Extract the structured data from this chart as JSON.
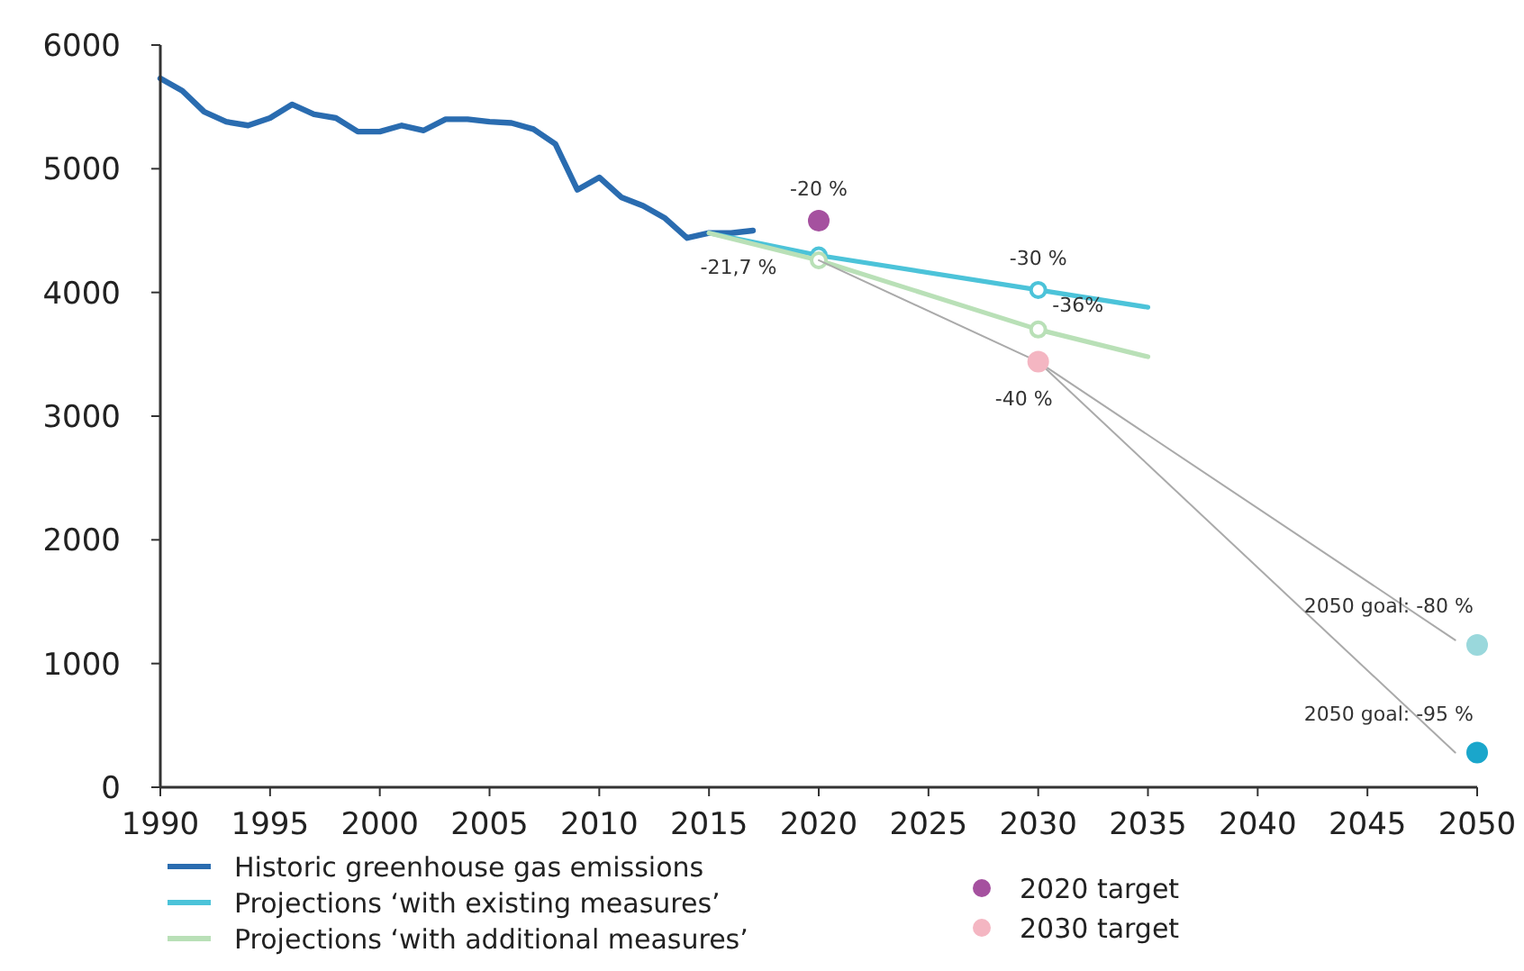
{
  "chart_data": {
    "type": "line",
    "xlim": [
      1990,
      2050
    ],
    "ylim": [
      0,
      6000
    ],
    "xticks": [
      1990,
      1995,
      2000,
      2005,
      2010,
      2015,
      2020,
      2025,
      2030,
      2035,
      2040,
      2045,
      2050
    ],
    "yticks": [
      0,
      1000,
      2000,
      3000,
      4000,
      5000,
      6000
    ],
    "grid": false,
    "legend": "bottom",
    "marker": "none",
    "line_style": "solid",
    "series": [
      {
        "name": "Historic greenhouse gas emissions",
        "color": "#2a6cb0",
        "x": [
          1990,
          1991,
          1992,
          1993,
          1994,
          1995,
          1996,
          1997,
          1998,
          1999,
          2000,
          2001,
          2002,
          2003,
          2004,
          2005,
          2006,
          2007,
          2008,
          2009,
          2010,
          2011,
          2012,
          2013,
          2014,
          2015,
          2016,
          2017
        ],
        "values": [
          5730,
          5630,
          5460,
          5380,
          5350,
          5410,
          5520,
          5440,
          5410,
          5300,
          5300,
          5350,
          5310,
          5400,
          5400,
          5380,
          5370,
          5320,
          5200,
          4830,
          4930,
          4770,
          4700,
          4600,
          4440,
          4480,
          4480,
          4500
        ]
      },
      {
        "name": "Projections ‘with existing measures’",
        "color": "#4cc3d9",
        "marker": "circle",
        "x": [
          2015,
          2020,
          2030,
          2035
        ],
        "values": [
          4480,
          4300,
          4020,
          3880
        ]
      },
      {
        "name": "Projections ‘with additional measures’",
        "color": "#b9e0b7",
        "marker": "circle",
        "x": [
          2015,
          2020,
          2030,
          2035
        ],
        "values": [
          4480,
          4260,
          3700,
          3480
        ]
      },
      {
        "color": "#aaaaaa",
        "x": [
          2020,
          2030,
          2049
        ],
        "values": [
          4260,
          3440,
          280
        ]
      },
      {
        "color": "#aaaaaa",
        "x": [
          2030,
          2049
        ],
        "values": [
          3440,
          1190
        ]
      },
      {
        "name": "2020 target",
        "type": "scatter",
        "marker": "circle",
        "color": "#a5519f",
        "x": [
          2020
        ],
        "values": [
          4580
        ]
      },
      {
        "name": "2030 target",
        "type": "scatter",
        "marker": "circle",
        "color": "#f4b6c2",
        "x": [
          2030
        ],
        "values": [
          3440
        ]
      },
      {
        "type": "scatter",
        "marker": "circle",
        "colors": [
          "#9ad8dc",
          "#1aa6cb"
        ],
        "x": [
          2050,
          2050
        ],
        "values": [
          1150,
          280
        ]
      }
    ],
    "annotations": [
      {
        "text": "-21,7 %",
        "x": 2017,
        "y": 4500
      },
      {
        "text": "-20 %",
        "x": 2020,
        "y": 4580
      },
      {
        "text": "-30 %",
        "x": 2030,
        "y": 4020
      },
      {
        "text": "-36%",
        "x": 2030,
        "y": 3700
      },
      {
        "text": "-40 %",
        "x": 2030,
        "y": 3440
      },
      {
        "text": "2050 goal: -80 %",
        "x": 2050,
        "y": 1150
      },
      {
        "text": "2050 goal: -95 %",
        "x": 2050,
        "y": 280
      }
    ]
  }
}
